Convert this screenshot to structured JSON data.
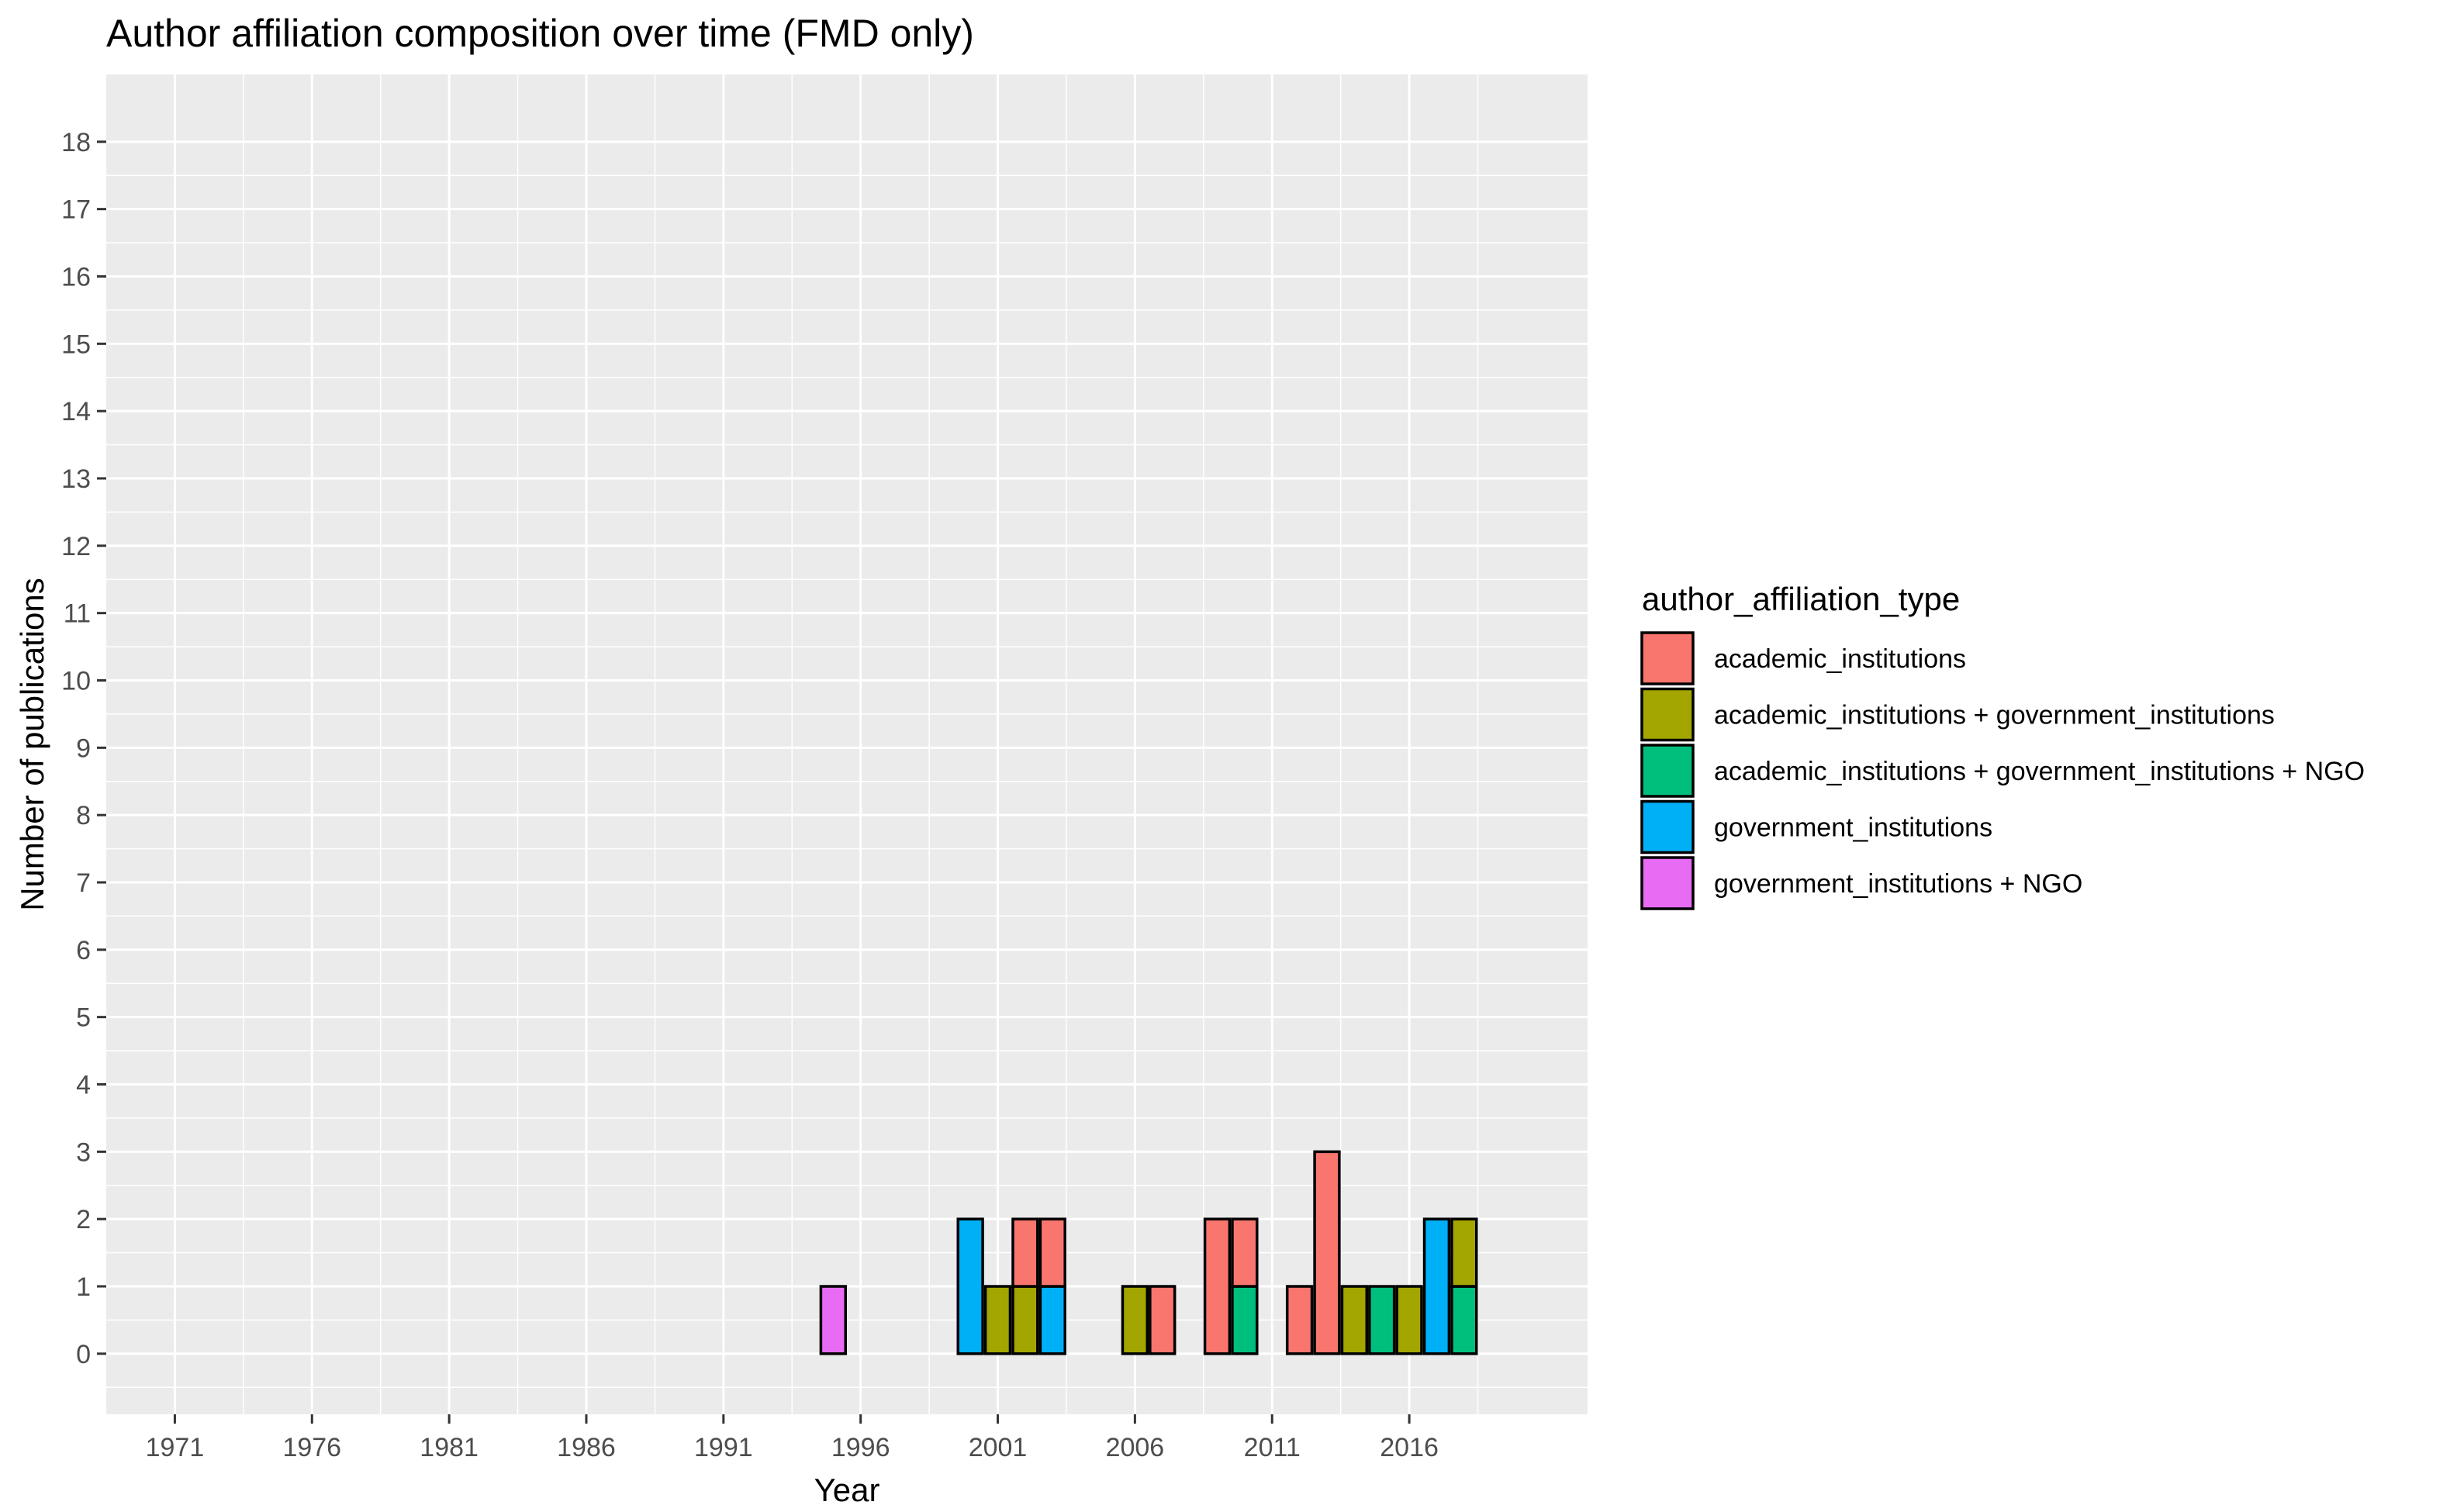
{
  "chart_data": {
    "type": "bar",
    "stacked": true,
    "title": "Author affiliation composition over time (FMD only)",
    "xlabel": "Year",
    "ylabel": "Number of publications",
    "xlim": [
      1968.5,
      2022.5
    ],
    "ylim": [
      -0.9,
      19
    ],
    "x_ticks": [
      "1971",
      "1976",
      "1981",
      "1986",
      "1991",
      "1996",
      "2001",
      "2006",
      "2011",
      "2016"
    ],
    "y_ticks": [
      "0",
      "1",
      "2",
      "3",
      "4",
      "5",
      "6",
      "7",
      "8",
      "9",
      "10",
      "11",
      "12",
      "13",
      "14",
      "15",
      "16",
      "17",
      "18"
    ],
    "grid": true,
    "legend": {
      "title": "author_affiliation_type",
      "placement": "right"
    },
    "series": [
      {
        "name": "academic_institutions",
        "color": "#F8766D",
        "points": [
          {
            "x": 2002,
            "y": 1
          },
          {
            "x": 2003,
            "y": 1
          },
          {
            "x": 2007,
            "y": 1
          },
          {
            "x": 2009,
            "y": 2
          },
          {
            "x": 2010,
            "y": 1
          },
          {
            "x": 2012,
            "y": 1
          },
          {
            "x": 2013,
            "y": 3
          }
        ]
      },
      {
        "name": "academic_institutions + government_institutions",
        "color": "#A3A500",
        "points": [
          {
            "x": 2001,
            "y": 1
          },
          {
            "x": 2002,
            "y": 1
          },
          {
            "x": 2006,
            "y": 1
          },
          {
            "x": 2014,
            "y": 1
          },
          {
            "x": 2016,
            "y": 1
          },
          {
            "x": 2018,
            "y": 1
          }
        ]
      },
      {
        "name": "academic_institutions + government_institutions + NGO",
        "color": "#00BF7D",
        "points": [
          {
            "x": 2010,
            "y": 1
          },
          {
            "x": 2015,
            "y": 1
          },
          {
            "x": 2018,
            "y": 1
          }
        ]
      },
      {
        "name": "government_institutions",
        "color": "#00B0F6",
        "points": [
          {
            "x": 2000,
            "y": 2
          },
          {
            "x": 2003,
            "y": 1
          },
          {
            "x": 2017,
            "y": 2
          }
        ]
      },
      {
        "name": "government_institutions + NGO",
        "color": "#E76BF3",
        "points": [
          {
            "x": 1995,
            "y": 1
          }
        ]
      }
    ]
  }
}
